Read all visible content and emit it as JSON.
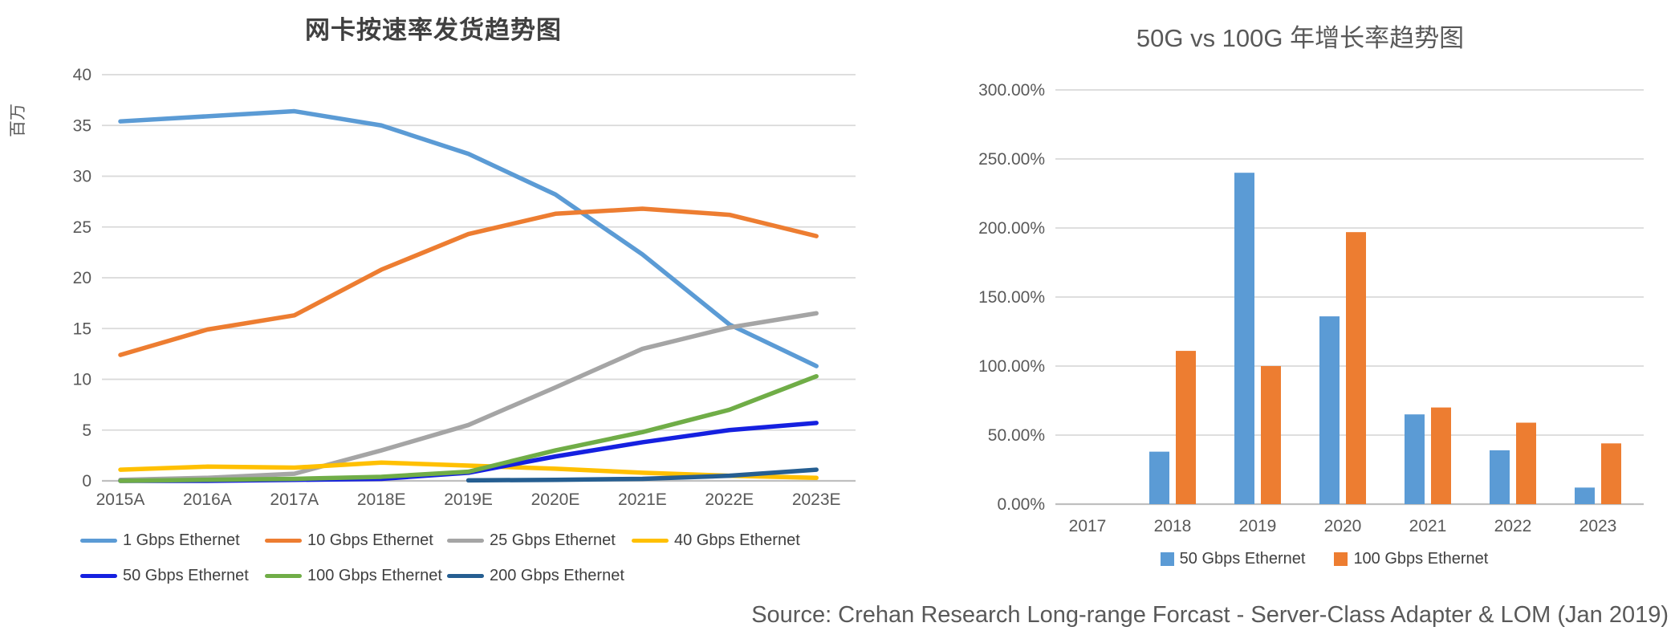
{
  "page": {
    "background": "#ffffff"
  },
  "source_note": "Source: Crehan Research Long-range Forcast - Server-Class Adapter & LOM (Jan 2019)",
  "styles": {
    "grid_color": "#D9D9D9",
    "baseline_color": "#BFBFBF",
    "tick_text_color": "#595959",
    "legend_text_color": "#404040"
  },
  "chart_data": [
    {
      "id": "nic-shipments-by-speed",
      "type": "line",
      "title": "网卡按速率发货趋势图",
      "ylabel": "百万",
      "xlabel": "",
      "grid": true,
      "legend_position": "bottom",
      "ylim": [
        0,
        40
      ],
      "ytick_step": 5,
      "categories": [
        "2015A",
        "2016A",
        "2017A",
        "2018E",
        "2019E",
        "2020E",
        "2021E",
        "2022E",
        "2023E"
      ],
      "series": [
        {
          "name": "1 Gbps Ethernet",
          "color": "#5B9BD5",
          "values": [
            35.4,
            35.9,
            36.4,
            35.0,
            32.2,
            28.2,
            22.3,
            15.4,
            11.3
          ]
        },
        {
          "name": "10 Gbps Ethernet",
          "color": "#ED7D31",
          "values": [
            12.4,
            14.9,
            16.3,
            20.8,
            24.3,
            26.3,
            26.8,
            26.2,
            24.1
          ]
        },
        {
          "name": "25 Gbps Ethernet",
          "color": "#A5A5A5",
          "values": [
            0.1,
            0.3,
            0.7,
            3.0,
            5.5,
            9.2,
            13.0,
            15.1,
            16.5
          ]
        },
        {
          "name": "40 Gbps Ethernet",
          "color": "#FFC000",
          "values": [
            1.1,
            1.4,
            1.3,
            1.8,
            1.5,
            1.2,
            0.8,
            0.5,
            0.3
          ]
        },
        {
          "name": "50 Gbps Ethernet",
          "color": "#1520E0",
          "values": [
            0.0,
            0.0,
            0.1,
            0.2,
            0.8,
            2.4,
            3.8,
            5.0,
            5.7
          ]
        },
        {
          "name": "100 Gbps Ethernet",
          "color": "#70AD47",
          "values": [
            0.0,
            0.1,
            0.2,
            0.4,
            0.9,
            3.0,
            4.8,
            7.0,
            10.3
          ]
        },
        {
          "name": "200 Gbps Ethernet",
          "color": "#255E91",
          "values": [
            null,
            null,
            null,
            null,
            0.05,
            0.1,
            0.2,
            0.5,
            1.1
          ]
        }
      ]
    },
    {
      "id": "50g-vs-100g-growth",
      "type": "bar",
      "title": "50G vs 100G 年增长率趋势图",
      "ylabel": "",
      "xlabel": "",
      "grid": true,
      "legend_position": "bottom",
      "ylim": [
        0,
        300
      ],
      "ytick_step": 50,
      "ytick_format": "percent2",
      "categories": [
        "2017",
        "2018",
        "2019",
        "2020",
        "2021",
        "2022",
        "2023"
      ],
      "series": [
        {
          "name": "50 Gbps Ethernet",
          "color": "#5B9BD5",
          "values": [
            0,
            38,
            240,
            136,
            65,
            39,
            12
          ]
        },
        {
          "name": "100 Gbps Ethernet",
          "color": "#ED7D31",
          "values": [
            0,
            111,
            100,
            197,
            70,
            59,
            44
          ]
        }
      ]
    }
  ]
}
